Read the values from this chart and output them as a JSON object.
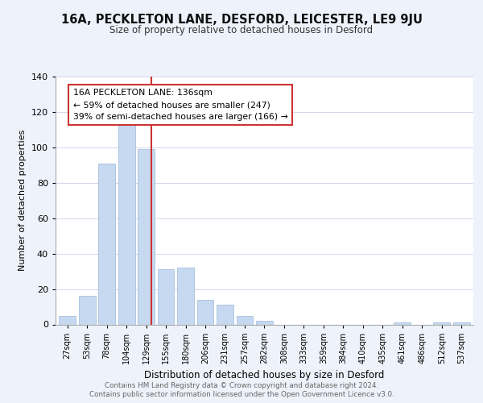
{
  "title": "16A, PECKLETON LANE, DESFORD, LEICESTER, LE9 9JU",
  "subtitle": "Size of property relative to detached houses in Desford",
  "xlabel": "Distribution of detached houses by size in Desford",
  "ylabel": "Number of detached properties",
  "bar_color": "#c6d9f0",
  "bar_edge_color": "#9ab8d8",
  "vline_color": "#cc3333",
  "bins": [
    "27sqm",
    "53sqm",
    "78sqm",
    "104sqm",
    "129sqm",
    "155sqm",
    "180sqm",
    "206sqm",
    "231sqm",
    "257sqm",
    "282sqm",
    "308sqm",
    "333sqm",
    "359sqm",
    "384sqm",
    "410sqm",
    "435sqm",
    "461sqm",
    "486sqm",
    "512sqm",
    "537sqm"
  ],
  "values": [
    5,
    16,
    91,
    115,
    99,
    31,
    32,
    14,
    11,
    5,
    2,
    0,
    0,
    0,
    0,
    0,
    0,
    1,
    0,
    1,
    1
  ],
  "annotation_title": "16A PECKLETON LANE: 136sqm",
  "annotation_line1": "← 59% of detached houses are smaller (247)",
  "annotation_line2": "39% of semi-detached houses are larger (166) →",
  "annotation_box_color": "#ffffff",
  "annotation_box_edge_color": "#cc3333",
  "ylim": [
    0,
    140
  ],
  "yticks": [
    0,
    20,
    40,
    60,
    80,
    100,
    120,
    140
  ],
  "footer_line1": "Contains HM Land Registry data © Crown copyright and database right 2024.",
  "footer_line2": "Contains public sector information licensed under the Open Government Licence v3.0.",
  "background_color": "#eef2fa",
  "plot_bg_color": "#ffffff",
  "grid_color": "#d0d8ec"
}
